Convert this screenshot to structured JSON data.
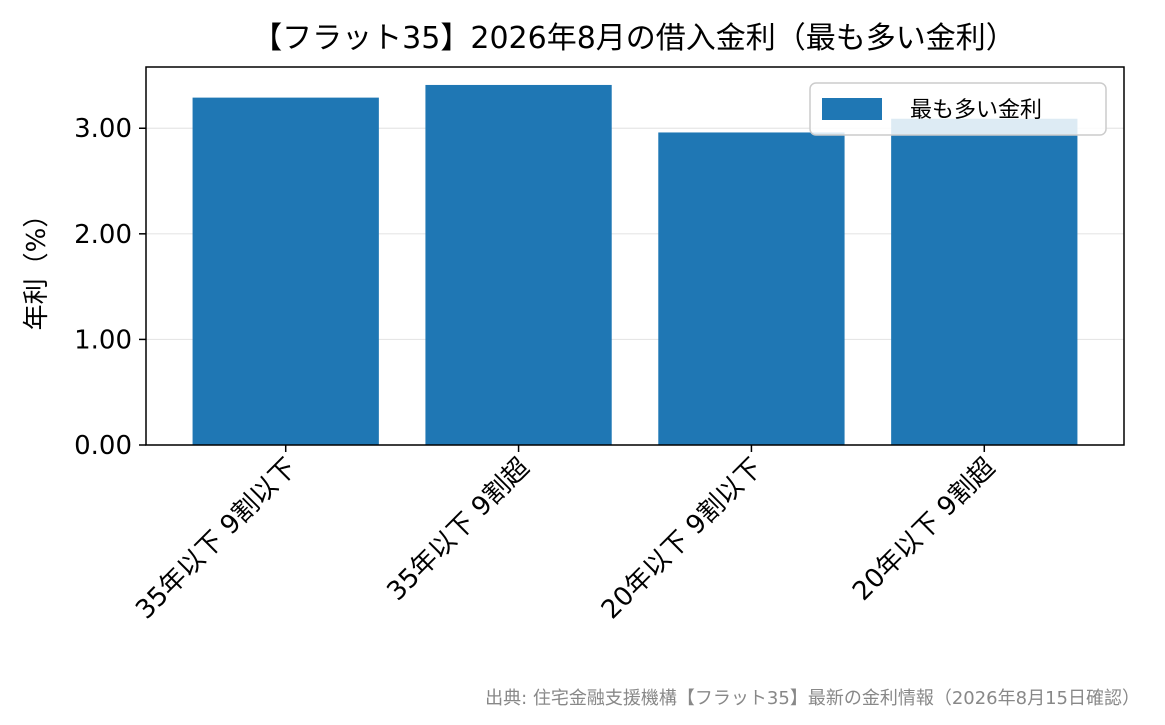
{
  "chart_data": {
    "type": "bar",
    "title": "【フラット35】2026年8月の借入金利（最も多い金利）",
    "xlabel": "",
    "ylabel": "年利（%）",
    "categories": [
      "35年以下 9割以下",
      "35年以下 9割超",
      "20年以下 9割以下",
      "20年以下 9割超"
    ],
    "series": [
      {
        "name": "最も多い金利",
        "values": [
          3.29,
          3.41,
          2.96,
          3.09
        ],
        "color": "#1f77b4"
      }
    ],
    "ylim": [
      0,
      3.58
    ],
    "yticks": [
      0,
      1,
      2,
      3
    ],
    "ytick_labels": [
      "0.00",
      "1.00",
      "2.00",
      "3.00"
    ],
    "grid": "horizontal",
    "legend_position": "top-right",
    "source": "出典: 住宅金融支援機構【フラット35】最新の金利情報（2026年8月15日確認）"
  }
}
